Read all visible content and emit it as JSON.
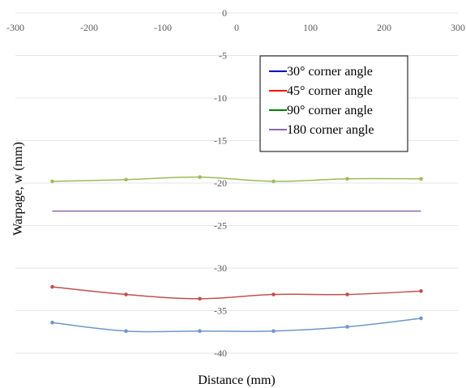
{
  "chart_data": {
    "type": "line",
    "xlabel": "Distance (mm)",
    "ylabel": "Warpage, w (mm)",
    "xlim": [
      -300,
      300
    ],
    "ylim": [
      -40,
      0
    ],
    "x_ticks": [
      -300,
      -200,
      -100,
      0,
      100,
      200,
      300
    ],
    "y_ticks": [
      0,
      -5,
      -10,
      -15,
      -20,
      -25,
      -30,
      -35,
      -40
    ],
    "grid": "horizontal",
    "legend_position": "top-right",
    "series": [
      {
        "name": "30° corner angle",
        "legend_color": "#0000cc",
        "line_color": "#6d97c7",
        "markers": true,
        "x": [
          -250,
          -150,
          -50,
          50,
          150,
          250
        ],
        "y": [
          -36.4,
          -37.4,
          -37.4,
          -37.4,
          -36.9,
          -35.9
        ]
      },
      {
        "name": "45° corner angle",
        "legend_color": "#ff0000",
        "line_color": "#c0504d",
        "markers": true,
        "x": [
          -250,
          -150,
          -50,
          50,
          150,
          250
        ],
        "y": [
          -32.2,
          -33.1,
          -33.6,
          -33.1,
          -33.1,
          -32.7
        ]
      },
      {
        "name": "90° corner angle",
        "legend_color": "#008000",
        "line_color": "#9bbb59",
        "markers": true,
        "x": [
          -250,
          -150,
          -50,
          50,
          150,
          250
        ],
        "y": [
          -19.8,
          -19.6,
          -19.3,
          -19.8,
          -19.5,
          -19.5
        ]
      },
      {
        "name": "180 corner angle",
        "legend_color": "#8e65a8",
        "line_color": "#8e65a8",
        "markers": false,
        "x": [
          -250,
          250
        ],
        "y": [
          -23.3,
          -23.3
        ]
      }
    ]
  }
}
